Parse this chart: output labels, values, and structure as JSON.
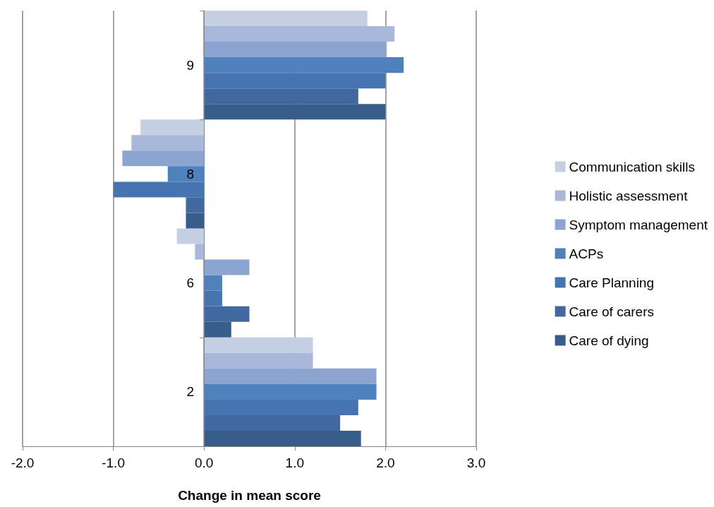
{
  "chart_data": {
    "type": "bar",
    "orientation": "horizontal",
    "xlabel": "Change in mean score",
    "categories": [
      "9",
      "8",
      "6",
      "2"
    ],
    "xlim": [
      -2,
      3
    ],
    "xticks": [
      {
        "value": -2,
        "label": "-2.0"
      },
      {
        "value": -1,
        "label": "-1.0"
      },
      {
        "value": 0,
        "label": "0.0"
      },
      {
        "value": 1,
        "label": "1.0"
      },
      {
        "value": 2,
        "label": "2.0"
      },
      {
        "value": 3,
        "label": "3.0"
      }
    ],
    "grid": "x",
    "legend": "right",
    "series": [
      {
        "name": "Communication skills",
        "color": "#c6d0e4",
        "values": [
          1.8,
          -0.7,
          -0.3,
          1.2
        ]
      },
      {
        "name": "Holistic assessment",
        "color": "#a9b8d9",
        "values": [
          2.1,
          -0.8,
          -0.1,
          1.2
        ]
      },
      {
        "name": "Symptom management",
        "color": "#8ba4d0",
        "values": [
          2.0,
          -0.9,
          0.5,
          1.9
        ]
      },
      {
        "name": "ACPs",
        "color": "#4f81bd",
        "values": [
          2.2,
          -0.4,
          0.2,
          1.9
        ]
      },
      {
        "name": "Care Planning",
        "color": "#4674b0",
        "values": [
          2.0,
          -1.0,
          0.2,
          1.7
        ]
      },
      {
        "name": "Care of carers",
        "color": "#41689f",
        "values": [
          1.7,
          -0.2,
          0.5,
          1.5
        ]
      },
      {
        "name": "Care of dying",
        "color": "#385d8a",
        "values": [
          2.0,
          -0.2,
          0.3,
          1.73
        ]
      }
    ]
  }
}
